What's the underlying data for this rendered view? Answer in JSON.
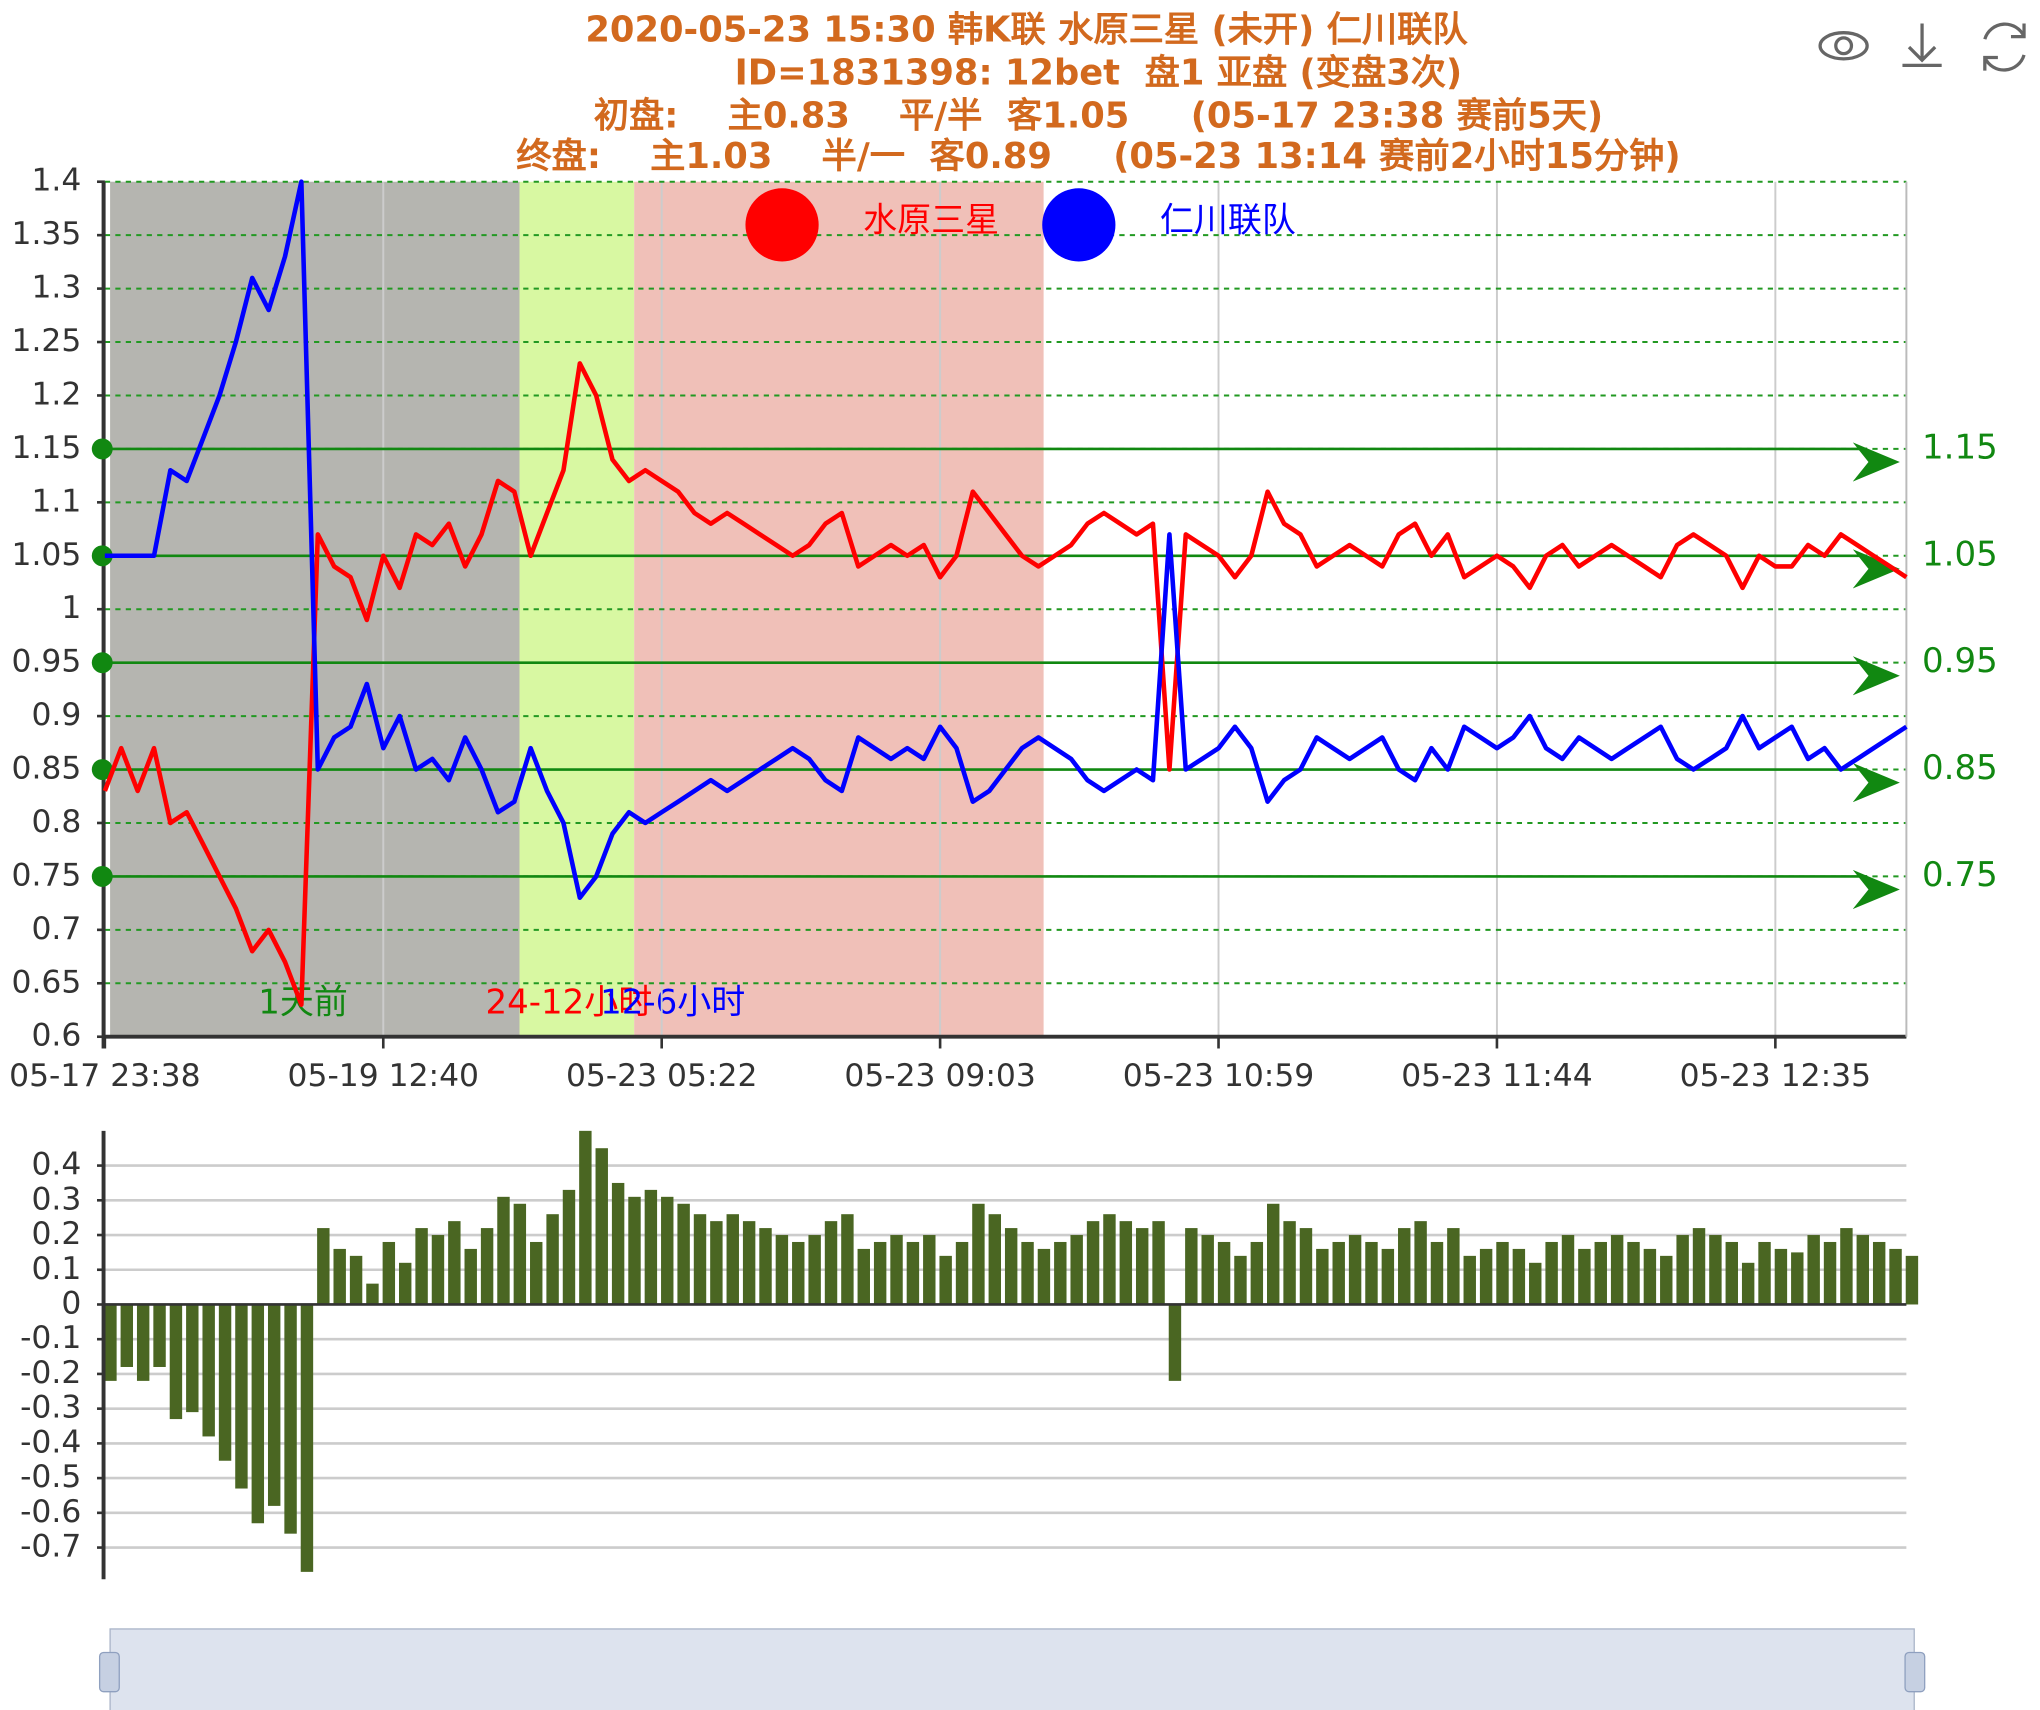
{
  "chart_data": [
    {
      "type": "line",
      "title": [
        "2020-05-23 15:30 韩K联 水原三星 (未开) 仁川联队",
        "ID=1831398: 12bet  盘1 亚盘 (变盘3次)",
        "初盘:    主0.83    平/半  客1.05     (05-17 23:38 赛前5天)",
        "终盘:    主1.03    半/一  客0.89     (05-23 13:14 赛前2小时15分钟)"
      ],
      "categories": [
        "05-17 23:38",
        null,
        null,
        null,
        null,
        null,
        null,
        null,
        null,
        null,
        null,
        null,
        null,
        null,
        null,
        null,
        null,
        "05-19 12:40",
        null,
        null,
        null,
        null,
        null,
        null,
        null,
        null,
        null,
        null,
        null,
        null,
        null,
        null,
        null,
        null,
        "05-23 05:22",
        null,
        null,
        null,
        null,
        null,
        null,
        null,
        null,
        null,
        null,
        null,
        null,
        null,
        null,
        null,
        null,
        "05-23 09:03",
        null,
        null,
        null,
        null,
        null,
        null,
        null,
        null,
        null,
        null,
        null,
        null,
        null,
        null,
        null,
        null,
        "05-23 10:59",
        null,
        null,
        null,
        null,
        null,
        null,
        null,
        null,
        null,
        null,
        null,
        null,
        null,
        null,
        null,
        null,
        "05-23 11:44",
        null,
        null,
        null,
        null,
        null,
        null,
        null,
        null,
        null,
        null,
        null,
        null,
        null,
        null,
        null,
        null,
        "05-23 12:35",
        null,
        null,
        null,
        null,
        null,
        null,
        null,
        null
      ],
      "series": [
        {
          "name": "水原三星",
          "color": "#ff0000",
          "values": [
            0.83,
            0.87,
            0.83,
            0.87,
            0.8,
            0.81,
            0.78,
            0.75,
            0.72,
            0.68,
            0.7,
            0.67,
            0.63,
            1.07,
            1.04,
            1.03,
            0.99,
            1.05,
            1.02,
            1.07,
            1.06,
            1.08,
            1.04,
            1.07,
            1.12,
            1.11,
            1.05,
            1.09,
            1.13,
            1.23,
            1.2,
            1.14,
            1.12,
            1.13,
            1.12,
            1.11,
            1.09,
            1.08,
            1.09,
            1.08,
            1.07,
            1.06,
            1.05,
            1.06,
            1.08,
            1.09,
            1.04,
            1.05,
            1.06,
            1.05,
            1.06,
            1.03,
            1.05,
            1.11,
            1.09,
            1.07,
            1.05,
            1.04,
            1.05,
            1.06,
            1.08,
            1.09,
            1.08,
            1.07,
            1.08,
            0.85,
            1.07,
            1.06,
            1.05,
            1.03,
            1.05,
            1.11,
            1.08,
            1.07,
            1.04,
            1.05,
            1.06,
            1.05,
            1.04,
            1.07,
            1.08,
            1.05,
            1.07,
            1.03,
            1.04,
            1.05,
            1.04,
            1.02,
            1.05,
            1.06,
            1.04,
            1.05,
            1.06,
            1.05,
            1.04,
            1.03,
            1.06,
            1.07,
            1.06,
            1.05,
            1.02,
            1.05,
            1.04,
            1.04,
            1.06,
            1.05,
            1.07,
            1.06,
            1.05,
            1.04,
            1.03
          ]
        },
        {
          "name": "仁川联队",
          "color": "#0000ff",
          "values": [
            1.05,
            1.05,
            1.05,
            1.05,
            1.13,
            1.12,
            1.16,
            1.2,
            1.25,
            1.31,
            1.28,
            1.33,
            1.4,
            0.85,
            0.88,
            0.89,
            0.93,
            0.87,
            0.9,
            0.85,
            0.86,
            0.84,
            0.88,
            0.85,
            0.81,
            0.82,
            0.87,
            0.83,
            0.8,
            0.73,
            0.75,
            0.79,
            0.81,
            0.8,
            0.81,
            0.82,
            0.83,
            0.84,
            0.83,
            0.84,
            0.85,
            0.86,
            0.87,
            0.86,
            0.84,
            0.83,
            0.88,
            0.87,
            0.86,
            0.87,
            0.86,
            0.89,
            0.87,
            0.82,
            0.83,
            0.85,
            0.87,
            0.88,
            0.87,
            0.86,
            0.84,
            0.83,
            0.84,
            0.85,
            0.84,
            1.07,
            0.85,
            0.86,
            0.87,
            0.89,
            0.87,
            0.82,
            0.84,
            0.85,
            0.88,
            0.87,
            0.86,
            0.87,
            0.88,
            0.85,
            0.84,
            0.87,
            0.85,
            0.89,
            0.88,
            0.87,
            0.88,
            0.9,
            0.87,
            0.86,
            0.88,
            0.87,
            0.86,
            0.87,
            0.88,
            0.89,
            0.86,
            0.85,
            0.86,
            0.87,
            0.9,
            0.87,
            0.88,
            0.89,
            0.86,
            0.87,
            0.85,
            0.86,
            0.87,
            0.88,
            0.89
          ]
        }
      ],
      "ylim": [
        0.6,
        1.4
      ],
      "yticks": [
        0.6,
        0.65,
        0.7,
        0.75,
        0.8,
        0.85,
        0.9,
        0.95,
        1,
        1.05,
        1.1,
        1.15,
        1.2,
        1.25,
        1.3,
        1.35,
        1.4
      ],
      "grid": true,
      "mark_lines": [
        1.15,
        1.05,
        0.95,
        0.85,
        0.75
      ],
      "mark_line_color": "#118811",
      "bands": [
        {
          "label": "1天前",
          "from": 0,
          "to": 25,
          "color": "#b5b5b0",
          "label_color": "#118811"
        },
        {
          "label": "24-12小时",
          "from": 25,
          "to": 32,
          "color": "#d8f8a2",
          "label_color": "#ff0000"
        },
        {
          "label": "12-6小时",
          "from": 32,
          "to": 57,
          "color": "#f0c0b8",
          "label_color": "#0000ff"
        }
      ]
    },
    {
      "type": "bar",
      "color": "#4a6622",
      "values": [
        -0.22,
        -0.18,
        -0.22,
        -0.18,
        -0.33,
        -0.31,
        -0.38,
        -0.45,
        -0.53,
        -0.63,
        -0.58,
        -0.66,
        -0.77,
        0.22,
        0.16,
        0.14,
        0.06,
        0.18,
        0.12,
        0.22,
        0.2,
        0.24,
        0.16,
        0.22,
        0.31,
        0.29,
        0.18,
        0.26,
        0.33,
        0.5,
        0.45,
        0.35,
        0.31,
        0.33,
        0.31,
        0.29,
        0.26,
        0.24,
        0.26,
        0.24,
        0.22,
        0.2,
        0.18,
        0.2,
        0.24,
        0.26,
        0.16,
        0.18,
        0.2,
        0.18,
        0.2,
        0.14,
        0.18,
        0.29,
        0.26,
        0.22,
        0.18,
        0.16,
        0.18,
        0.2,
        0.24,
        0.26,
        0.24,
        0.22,
        0.24,
        -0.22,
        0.22,
        0.2,
        0.18,
        0.14,
        0.18,
        0.29,
        0.24,
        0.22,
        0.16,
        0.18,
        0.2,
        0.18,
        0.16,
        0.22,
        0.24,
        0.18,
        0.22,
        0.14,
        0.16,
        0.18,
        0.16,
        0.12,
        0.18,
        0.2,
        0.16,
        0.18,
        0.2,
        0.18,
        0.16,
        0.14,
        0.2,
        0.22,
        0.2,
        0.18,
        0.12,
        0.18,
        0.16,
        0.15,
        0.2,
        0.18,
        0.22,
        0.2,
        0.18,
        0.16,
        0.14
      ],
      "ylim": [
        -0.78,
        0.5
      ],
      "yticks": [
        -0.7,
        -0.6,
        -0.5,
        -0.4,
        -0.3,
        -0.2,
        -0.1,
        0,
        0.1,
        0.2,
        0.3,
        0.4
      ],
      "grid": true
    }
  ]
}
